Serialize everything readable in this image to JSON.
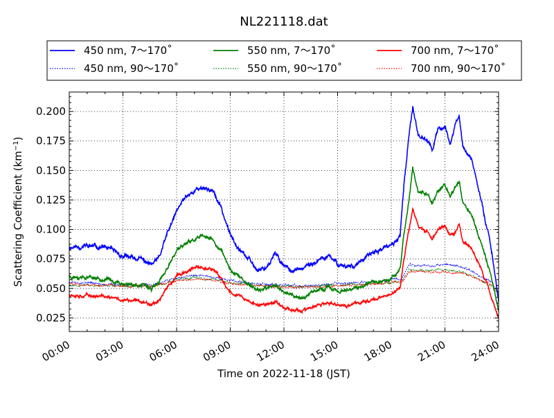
{
  "chart_data": {
    "type": "line",
    "title": "NL221118.dat",
    "xlabel": "Time on 2022-11-18 (JST)",
    "ylabel": "Scattering Coefficient (km",
    "ylabel_exp": "−1",
    "ylabel_close": ")",
    "xlim": [
      0,
      24
    ],
    "ylim": [
      0.0135,
      0.2165
    ],
    "x_ticks": [
      0,
      3,
      6,
      9,
      12,
      15,
      18,
      21,
      24
    ],
    "x_tick_labels": [
      "00:00",
      "03:00",
      "06:00",
      "09:00",
      "12:00",
      "15:00",
      "18:00",
      "21:00",
      "24:00"
    ],
    "y_ticks": [
      0.025,
      0.05,
      0.075,
      0.1,
      0.125,
      0.15,
      0.175,
      0.2
    ],
    "y_tick_labels": [
      "0.025",
      "0.050",
      "0.075",
      "0.100",
      "0.125",
      "0.150",
      "0.175",
      "0.200"
    ],
    "grid": true,
    "legend": "top-outside",
    "series": [
      {
        "name": "450 nm, 7～170˚",
        "color": "#0000ff",
        "style": "solid",
        "seed": 11,
        "noise": 0.0016,
        "points": [
          [
            0,
            0.085
          ],
          [
            1,
            0.086
          ],
          [
            2,
            0.085
          ],
          [
            3,
            0.077
          ],
          [
            4,
            0.075
          ],
          [
            4.6,
            0.07
          ],
          [
            5,
            0.075
          ],
          [
            5.5,
            0.097
          ],
          [
            6,
            0.115
          ],
          [
            6.5,
            0.128
          ],
          [
            7,
            0.133
          ],
          [
            7.5,
            0.136
          ],
          [
            8,
            0.133
          ],
          [
            8.5,
            0.118
          ],
          [
            9,
            0.095
          ],
          [
            9.5,
            0.085
          ],
          [
            10,
            0.075
          ],
          [
            10.5,
            0.066
          ],
          [
            11,
            0.068
          ],
          [
            11.5,
            0.079
          ],
          [
            12,
            0.07
          ],
          [
            12.5,
            0.065
          ],
          [
            13,
            0.066
          ],
          [
            13.5,
            0.07
          ],
          [
            14,
            0.074
          ],
          [
            14.5,
            0.077
          ],
          [
            15,
            0.071
          ],
          [
            15.5,
            0.069
          ],
          [
            16,
            0.07
          ],
          [
            16.5,
            0.075
          ],
          [
            17,
            0.08
          ],
          [
            17.5,
            0.084
          ],
          [
            18,
            0.086
          ],
          [
            18.5,
            0.095
          ],
          [
            18.7,
            0.135
          ],
          [
            19,
            0.18
          ],
          [
            19.2,
            0.205
          ],
          [
            19.5,
            0.18
          ],
          [
            20,
            0.177
          ],
          [
            20.3,
            0.167
          ],
          [
            20.6,
            0.185
          ],
          [
            21,
            0.187
          ],
          [
            21.3,
            0.172
          ],
          [
            21.6,
            0.19
          ],
          [
            21.8,
            0.196
          ],
          [
            22,
            0.17
          ],
          [
            22.5,
            0.16
          ],
          [
            23,
            0.125
          ],
          [
            23.5,
            0.093
          ],
          [
            24,
            0.04
          ]
        ]
      },
      {
        "name": "550 nm, 7～170˚",
        "color": "#008000",
        "style": "solid",
        "seed": 23,
        "noise": 0.0013,
        "points": [
          [
            0,
            0.06
          ],
          [
            1,
            0.06
          ],
          [
            2,
            0.058
          ],
          [
            3,
            0.054
          ],
          [
            4,
            0.053
          ],
          [
            4.6,
            0.05
          ],
          [
            5,
            0.054
          ],
          [
            5.5,
            0.068
          ],
          [
            6,
            0.082
          ],
          [
            6.5,
            0.088
          ],
          [
            7,
            0.091
          ],
          [
            7.5,
            0.094
          ],
          [
            8,
            0.091
          ],
          [
            8.5,
            0.082
          ],
          [
            9,
            0.066
          ],
          [
            9.5,
            0.06
          ],
          [
            10,
            0.054
          ],
          [
            10.5,
            0.049
          ],
          [
            11,
            0.049
          ],
          [
            11.5,
            0.054
          ],
          [
            12,
            0.047
          ],
          [
            12.5,
            0.044
          ],
          [
            13,
            0.042
          ],
          [
            13.5,
            0.045
          ],
          [
            14,
            0.049
          ],
          [
            14.5,
            0.051
          ],
          [
            15,
            0.048
          ],
          [
            15.5,
            0.047
          ],
          [
            16,
            0.05
          ],
          [
            16.5,
            0.052
          ],
          [
            17,
            0.055
          ],
          [
            17.5,
            0.057
          ],
          [
            18,
            0.059
          ],
          [
            18.5,
            0.066
          ],
          [
            18.7,
            0.095
          ],
          [
            19,
            0.125
          ],
          [
            19.2,
            0.152
          ],
          [
            19.5,
            0.133
          ],
          [
            20,
            0.13
          ],
          [
            20.3,
            0.122
          ],
          [
            20.6,
            0.133
          ],
          [
            21,
            0.137
          ],
          [
            21.3,
            0.128
          ],
          [
            21.6,
            0.138
          ],
          [
            21.8,
            0.142
          ],
          [
            22,
            0.123
          ],
          [
            22.5,
            0.112
          ],
          [
            23,
            0.09
          ],
          [
            23.5,
            0.065
          ],
          [
            24,
            0.032
          ]
        ]
      },
      {
        "name": "700 nm, 7～170˚",
        "color": "#ff0000",
        "style": "solid",
        "seed": 37,
        "noise": 0.0011,
        "points": [
          [
            0,
            0.045
          ],
          [
            1,
            0.044
          ],
          [
            2,
            0.043
          ],
          [
            3,
            0.04
          ],
          [
            4,
            0.039
          ],
          [
            4.6,
            0.037
          ],
          [
            5,
            0.04
          ],
          [
            5.5,
            0.051
          ],
          [
            6,
            0.06
          ],
          [
            6.5,
            0.064
          ],
          [
            7,
            0.067
          ],
          [
            7.5,
            0.068
          ],
          [
            8,
            0.066
          ],
          [
            8.5,
            0.058
          ],
          [
            9,
            0.047
          ],
          [
            9.5,
            0.044
          ],
          [
            10,
            0.039
          ],
          [
            10.5,
            0.036
          ],
          [
            11,
            0.036
          ],
          [
            11.5,
            0.039
          ],
          [
            12,
            0.034
          ],
          [
            12.5,
            0.032
          ],
          [
            13,
            0.031
          ],
          [
            13.5,
            0.033
          ],
          [
            14,
            0.036
          ],
          [
            14.5,
            0.037
          ],
          [
            15,
            0.036
          ],
          [
            15.5,
            0.035
          ],
          [
            16,
            0.037
          ],
          [
            16.5,
            0.039
          ],
          [
            17,
            0.041
          ],
          [
            17.5,
            0.043
          ],
          [
            18,
            0.045
          ],
          [
            18.5,
            0.05
          ],
          [
            18.7,
            0.075
          ],
          [
            19,
            0.1
          ],
          [
            19.2,
            0.118
          ],
          [
            19.5,
            0.103
          ],
          [
            20,
            0.098
          ],
          [
            20.3,
            0.092
          ],
          [
            20.6,
            0.1
          ],
          [
            21,
            0.103
          ],
          [
            21.3,
            0.094
          ],
          [
            21.6,
            0.098
          ],
          [
            21.8,
            0.105
          ],
          [
            22,
            0.09
          ],
          [
            22.5,
            0.083
          ],
          [
            23,
            0.068
          ],
          [
            23.5,
            0.048
          ],
          [
            24,
            0.024
          ]
        ]
      },
      {
        "name": "450 nm, 90～170˚",
        "color": "#0000ff",
        "style": "dotted",
        "seed": 51,
        "noise": 0.0008,
        "points": [
          [
            0,
            0.055
          ],
          [
            3,
            0.053
          ],
          [
            4.6,
            0.053
          ],
          [
            6,
            0.058
          ],
          [
            7,
            0.061
          ],
          [
            8,
            0.06
          ],
          [
            9,
            0.057
          ],
          [
            10.5,
            0.054
          ],
          [
            12,
            0.053
          ],
          [
            13,
            0.052
          ],
          [
            15,
            0.054
          ],
          [
            17,
            0.055
          ],
          [
            18,
            0.057
          ],
          [
            18.6,
            0.058
          ],
          [
            19,
            0.07
          ],
          [
            20,
            0.069
          ],
          [
            21,
            0.07
          ],
          [
            22,
            0.068
          ],
          [
            23,
            0.06
          ],
          [
            23.6,
            0.055
          ],
          [
            24,
            0.047
          ]
        ]
      },
      {
        "name": "550 nm, 90～170˚",
        "color": "#008000",
        "style": "dotted",
        "seed": 67,
        "noise": 0.0007,
        "points": [
          [
            0,
            0.053
          ],
          [
            3,
            0.052
          ],
          [
            4.6,
            0.052
          ],
          [
            6,
            0.057
          ],
          [
            7,
            0.059
          ],
          [
            8,
            0.058
          ],
          [
            9,
            0.055
          ],
          [
            10.5,
            0.053
          ],
          [
            12,
            0.052
          ],
          [
            13,
            0.051
          ],
          [
            15,
            0.053
          ],
          [
            17,
            0.054
          ],
          [
            18,
            0.055
          ],
          [
            18.6,
            0.056
          ],
          [
            19,
            0.066
          ],
          [
            20,
            0.065
          ],
          [
            21,
            0.066
          ],
          [
            22,
            0.064
          ],
          [
            23,
            0.057
          ],
          [
            23.6,
            0.052
          ],
          [
            24,
            0.045
          ]
        ]
      },
      {
        "name": "700 nm, 90～170˚",
        "color": "#ff0000",
        "style": "dotted",
        "seed": 79,
        "noise": 0.0007,
        "points": [
          [
            0,
            0.054
          ],
          [
            3,
            0.052
          ],
          [
            4.6,
            0.052
          ],
          [
            6,
            0.056
          ],
          [
            7,
            0.058
          ],
          [
            8,
            0.057
          ],
          [
            9,
            0.054
          ],
          [
            10.5,
            0.052
          ],
          [
            12,
            0.051
          ],
          [
            13,
            0.051
          ],
          [
            15,
            0.052
          ],
          [
            17,
            0.054
          ],
          [
            18,
            0.055
          ],
          [
            18.6,
            0.056
          ],
          [
            19,
            0.064
          ],
          [
            20,
            0.064
          ],
          [
            21,
            0.064
          ],
          [
            22,
            0.063
          ],
          [
            23,
            0.057
          ],
          [
            23.6,
            0.053
          ],
          [
            24,
            0.046
          ]
        ]
      }
    ]
  },
  "legend_items": [
    {
      "label": "450 nm, 7～170˚",
      "color": "#0000ff",
      "style": "solid"
    },
    {
      "label": "550 nm, 7～170˚",
      "color": "#008000",
      "style": "solid"
    },
    {
      "label": "700 nm, 7～170˚",
      "color": "#ff0000",
      "style": "solid"
    },
    {
      "label": "450 nm, 90～170˚",
      "color": "#0000ff",
      "style": "dotted"
    },
    {
      "label": "550 nm, 90～170˚",
      "color": "#008000",
      "style": "dotted"
    },
    {
      "label": "700 nm, 90～170˚",
      "color": "#ff0000",
      "style": "dotted"
    }
  ]
}
